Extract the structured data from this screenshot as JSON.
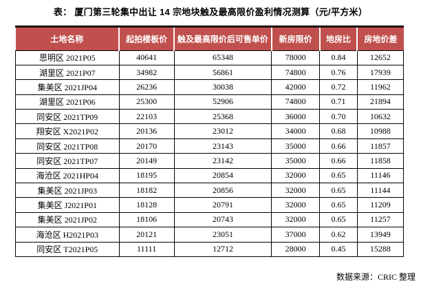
{
  "title": "表：  厦门第三轮集中出让 14 宗地块触及最高限价盈利情况测算（元/平方米）",
  "source_note": "数据来源：CRIC 整理",
  "colors": {
    "header_bg": "#c0504d",
    "header_text": "#ffffff",
    "top_border": "#1c1212",
    "grid": "#000000"
  },
  "chart_data": {
    "type": "table",
    "title": "厦门第三轮集中出让 14 宗地块触及最高限价盈利情况测算（元/平方米）",
    "columns": [
      "土地名称",
      "起拍楼板价",
      "触及最高限价后可售单价",
      "新房限价",
      "地房比",
      "房地价差"
    ],
    "rows": [
      [
        "思明区 2021P05",
        40641,
        65348,
        78000,
        "0.84",
        12652
      ],
      [
        "湖里区 2021P07",
        34982,
        56861,
        74800,
        "0.76",
        17939
      ],
      [
        "集美区 2021JP04",
        26236,
        30038,
        42000,
        "0.72",
        11962
      ],
      [
        "湖里区 2021P06",
        25300,
        52906,
        74800,
        "0.71",
        21894
      ],
      [
        "同安区 2021TP09",
        22103,
        25368,
        36000,
        "0.70",
        10632
      ],
      [
        "翔安区 X2021P02",
        20136,
        23012,
        34000,
        "0.68",
        10988
      ],
      [
        "同安区 2021TP08",
        20170,
        23143,
        35000,
        "0.66",
        11857
      ],
      [
        "同安区 2021TP07",
        20149,
        23142,
        35000,
        "0.66",
        11858
      ],
      [
        "海沧区 2021HP04",
        18195,
        20854,
        32000,
        "0.65",
        11146
      ],
      [
        "集美区 2021JP03",
        18182,
        20856,
        32000,
        "0.65",
        11144
      ],
      [
        "集美区 J2021P01",
        18128,
        20791,
        32000,
        "0.65",
        11209
      ],
      [
        "集美区 2021JP02",
        18106,
        20743,
        32000,
        "0.65",
        11257
      ],
      [
        "海沧区 H2021P03",
        20121,
        23051,
        37000,
        "0.62",
        13949
      ],
      [
        "同安区 T2021P05",
        11111,
        12712,
        28000,
        "0.45",
        15288
      ]
    ]
  }
}
